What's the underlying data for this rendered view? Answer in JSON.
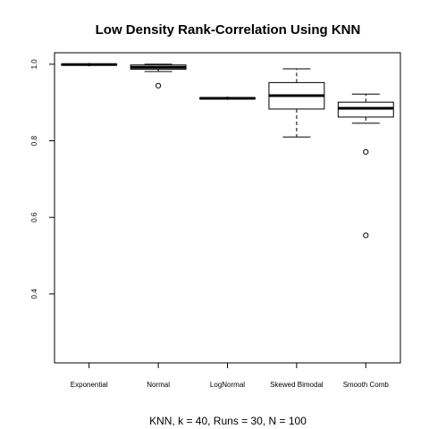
{
  "chart_data": {
    "type": "box",
    "title": "Low Density Rank-Correlation Using KNN",
    "xlabel": "KNN, k = 40,  Runs = 30, N = 100",
    "ylabel": "",
    "ylim": [
      0.22,
      1.03
    ],
    "yticks": [
      0.4,
      0.6,
      0.8,
      1.0
    ],
    "ytick_labels": [
      "0.4",
      "0.6",
      "0.8",
      "1.0"
    ],
    "grid": false,
    "categories": [
      "Exponential",
      "Normal",
      "LogNormal",
      "Skewed Bimodal",
      "Smooth Comb"
    ],
    "boxes": [
      {
        "whisker_low": 0.998,
        "q1": 0.998,
        "median": 0.999,
        "q3": 1.0,
        "whisker_high": 1.0,
        "outliers": []
      },
      {
        "whisker_low": 0.981,
        "q1": 0.987,
        "median": 0.992,
        "q3": 0.998,
        "whisker_high": 1.0,
        "outliers": [
          0.944
        ]
      },
      {
        "whisker_low": 0.909,
        "q1": 0.91,
        "median": 0.911,
        "q3": 0.912,
        "whisker_high": 0.913,
        "outliers": []
      },
      {
        "whisker_low": 0.81,
        "q1": 0.883,
        "median": 0.918,
        "q3": 0.952,
        "whisker_high": 0.988,
        "outliers": []
      },
      {
        "whisker_low": 0.846,
        "q1": 0.862,
        "median": 0.885,
        "q3": 0.901,
        "whisker_high": 0.922,
        "outliers": [
          0.771,
          0.553
        ]
      }
    ]
  }
}
